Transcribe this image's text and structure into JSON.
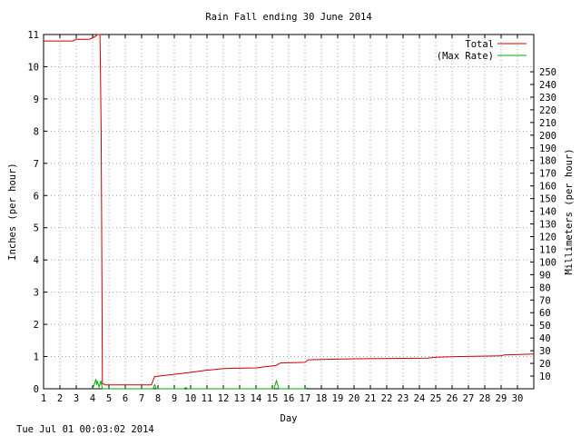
{
  "footer_timestamp": "Tue Jul 01 00:03:02 2014",
  "chart_data": {
    "type": "line",
    "title": "Rain Fall ending 30 June 2014",
    "xlabel": "Day",
    "ylabel": "Inches (per hour)",
    "y2label": "Millimeters (per hour)",
    "xlim": [
      1,
      31
    ],
    "ylim": [
      0,
      11
    ],
    "y2lim": [
      0,
      279.4
    ],
    "x_ticks": [
      1,
      2,
      3,
      4,
      5,
      6,
      7,
      8,
      9,
      10,
      11,
      12,
      13,
      14,
      15,
      16,
      17,
      18,
      19,
      20,
      21,
      22,
      23,
      24,
      25,
      26,
      27,
      28,
      29,
      30
    ],
    "y_ticks": [
      0,
      1,
      2,
      3,
      4,
      5,
      6,
      7,
      8,
      9,
      10,
      11
    ],
    "y2_ticks": [
      10,
      20,
      30,
      40,
      50,
      60,
      70,
      80,
      90,
      100,
      110,
      120,
      130,
      140,
      150,
      160,
      170,
      180,
      190,
      200,
      210,
      220,
      230,
      240,
      250
    ],
    "grid": true,
    "legend_position": "top-right",
    "series": [
      {
        "name": "Total",
        "color": "#cc0000",
        "x": [
          1.0,
          2.8,
          3.0,
          3.8,
          4.0,
          4.2,
          4.3,
          4.45,
          4.48,
          4.52,
          4.55,
          4.6,
          4.7,
          4.75,
          7.6,
          7.7,
          7.8,
          8.5,
          9.4,
          10.3,
          10.9,
          11.5,
          12.0,
          14.0,
          14.5,
          15.2,
          15.5,
          17.0,
          17.2,
          20.0,
          24.5,
          25.0,
          26.5,
          29.0,
          29.2,
          31.0
        ],
        "y": [
          10.8,
          10.8,
          10.85,
          10.85,
          10.9,
          10.95,
          11.0,
          11.0,
          10.0,
          8.0,
          5.5,
          0.15,
          0.15,
          0.12,
          0.12,
          0.25,
          0.38,
          0.42,
          0.47,
          0.53,
          0.57,
          0.6,
          0.63,
          0.65,
          0.68,
          0.72,
          0.8,
          0.82,
          0.9,
          0.93,
          0.95,
          0.98,
          1.0,
          1.02,
          1.05,
          1.08
        ]
      },
      {
        "name": "(Max Rate)",
        "color": "#00aa00",
        "x": [
          4.0,
          4.1,
          4.2,
          4.25,
          4.3,
          4.4,
          4.5,
          4.6,
          7.7,
          7.8,
          7.9,
          9.6,
          9.7,
          9.8,
          15.1,
          15.25,
          15.4,
          17.05,
          17.15
        ],
        "y": [
          0.0,
          0.12,
          0.3,
          0.15,
          0.22,
          0.05,
          0.25,
          0.0,
          0.0,
          0.12,
          0.0,
          0.0,
          0.04,
          0.0,
          0.0,
          0.25,
          0.0,
          0.0,
          0.03
        ]
      }
    ]
  }
}
